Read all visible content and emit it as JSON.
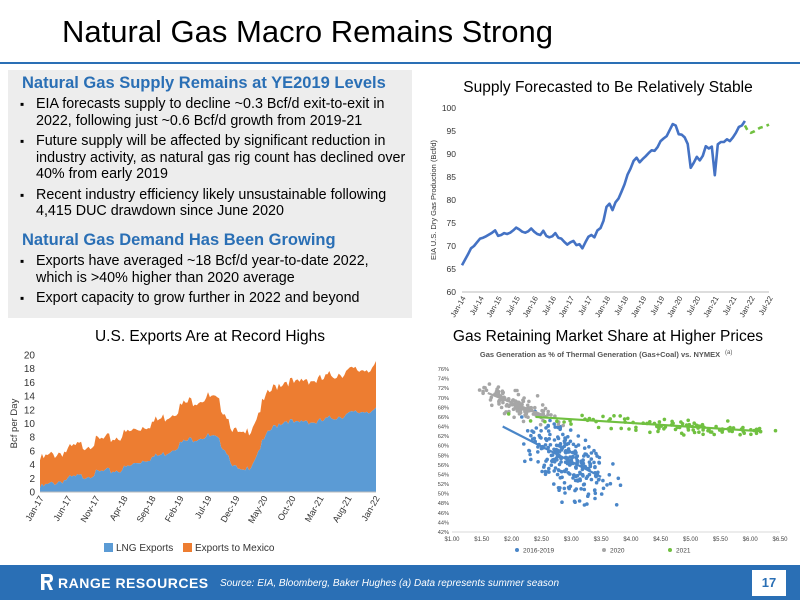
{
  "slide": {
    "title": "Natural Gas Macro Remains Strong",
    "page_number": "17",
    "footer_source": "Source: EIA, Bloomberg, Baker Hughes (a) Data represents summer season",
    "logo_text": "RANGE RESOURCES"
  },
  "text_panel": {
    "supply_heading": "Natural Gas Supply Remains at YE2019 Levels",
    "supply_bullets": [
      "EIA forecasts supply to decline ~0.3 Bcf/d exit-to-exit in 2022, following just ~0.6 Bcf/d growth from 2019-21",
      "Future supply will be affected by significant reduction in industry activity, as natural gas rig count has declined over 40% from early 2019",
      "Recent industry efficiency likely unsustainable following 4,415 DUC drawdown since June 2020"
    ],
    "demand_heading": "Natural Gas Demand Has Been Growing",
    "demand_bullets": [
      "Exports have averaged ~18 Bcf/d year-to-date 2022, which is >40% higher than 2020 average",
      "Export capacity to grow further in 2022 and beyond"
    ]
  },
  "chart_titles": {
    "supply": "Supply Forecasted to Be Relatively Stable",
    "exports": "U.S. Exports Are at Record Highs",
    "share": "Gas Retaining Market Share at Higher Prices"
  },
  "colors": {
    "accent": "#2a6fb5",
    "supply_line": "#4472c4",
    "forecast_line": "#70c040",
    "lng": "#5b9bd5",
    "mexico": "#ed7d31",
    "s2016": "#4a86c8",
    "s2020": "#a6a6a6",
    "s2021": "#70c040"
  },
  "chart_data": [
    {
      "type": "line",
      "ylabel": "EIA U.S. Dry Gas Production (Bcf/d)",
      "ylim": [
        60,
        100
      ],
      "yticks": [
        "60",
        "65",
        "70",
        "75",
        "80",
        "85",
        "90",
        "95",
        "100"
      ],
      "xticks": [
        "Jan-14",
        "Jul-14",
        "Jan-15",
        "Jul-15",
        "Jan-16",
        "Jul-16",
        "Jan-17",
        "Jul-17",
        "Jan-18",
        "Jul-18",
        "Jan-19",
        "Jul-19",
        "Jan-20",
        "Jul-20",
        "Jan-21",
        "Jul-21",
        "Jan-22",
        "Jul-22"
      ],
      "series": [
        {
          "values": [
            65.8,
            67.0,
            68.2,
            69.5,
            70.0,
            70.8,
            71.6,
            71.8,
            72.1,
            72.5,
            72.9,
            73.4,
            72.2,
            72.4,
            72.8,
            72.6,
            72.9,
            73.4,
            74.0,
            73.6,
            73.1,
            72.9,
            73.2,
            73.8,
            73.1,
            72.6,
            72.4,
            73.3,
            72.2,
            71.9,
            72.1,
            72.8,
            71.8,
            71.6,
            70.9,
            70.3,
            70.8,
            71.1,
            70.2,
            70.4,
            69.5,
            70.8,
            72.0,
            72.4,
            71.9,
            73.4,
            73.9,
            75.5,
            78.5,
            79.2,
            77.8,
            79.5,
            80.3,
            81.8,
            83.4,
            85.5,
            86.8,
            88.5,
            89.2,
            88.2,
            88.9,
            89.5,
            90.2,
            90.8,
            90.7,
            91.5,
            92.8,
            93.4,
            93.9,
            95.2,
            96.5,
            96.2,
            94.3,
            94.2,
            93.6,
            92.2,
            87.0,
            88.1,
            89.4,
            88.6,
            89.6,
            91.7,
            91.2,
            91.6,
            85.4,
            92.1,
            92.6,
            92.6,
            93.2,
            92.8,
            93.6,
            94.6,
            95.9,
            96.2,
            97.2
          ]
        },
        {
          "values": [
            96.2,
            95.0,
            94.6,
            94.9,
            95.3,
            95.7,
            95.9,
            96.1,
            96.4
          ]
        }
      ]
    },
    {
      "type": "area",
      "ylabel": "Bcf per Day",
      "ylim": [
        0,
        20
      ],
      "yticks": [
        "0",
        "2",
        "4",
        "6",
        "8",
        "10",
        "12",
        "14",
        "16",
        "18",
        "20"
      ],
      "xticks": [
        "Jan-17",
        "Jun-17",
        "Nov-17",
        "Apr-18",
        "Sep-18",
        "Feb-19",
        "Jul-19",
        "Dec-19",
        "May-20",
        "Oct-20",
        "Mar-21",
        "Aug-21",
        "Jan-22"
      ],
      "series": [
        {
          "name": "LNG Exports",
          "values": [
            0.9,
            1.3,
            1.8,
            2.1,
            2.4,
            2.6,
            2.9,
            3.2,
            3.3,
            3.5,
            3.9,
            4.6,
            5.1,
            5.4,
            5.8,
            6.6,
            7.4,
            7.9,
            8.3,
            8.4,
            8.0,
            6.5,
            3.8,
            3.0,
            4.5,
            7.1,
            9.2,
            10.3,
            10.8,
            10.1,
            10.8,
            10.4,
            10.6,
            11.1,
            11.4,
            11.6,
            11.9,
            12.2,
            12.1
          ]
        },
        {
          "name": "Exports to Mexico",
          "values": [
            4.2,
            4.3,
            4.4,
            4.3,
            4.6,
            4.7,
            4.8,
            4.8,
            4.9,
            5.1,
            5.2,
            5.1,
            5.2,
            5.3,
            5.5,
            5.5,
            5.6,
            5.8,
            5.7,
            5.9,
            5.7,
            5.6,
            5.4,
            5.4,
            5.7,
            5.8,
            5.8,
            6.0,
            6.0,
            5.9,
            6.3,
            6.3,
            6.2,
            6.4,
            6.5,
            6.4,
            6.3,
            6.4,
            6.6
          ]
        }
      ]
    },
    {
      "type": "scatter",
      "title": "Gas Generation as % of Thermal Generation (Gas+Coal) vs. NYMEX",
      "title_superscript": "(a)",
      "ylim": [
        42,
        76
      ],
      "yticks": [
        "42%",
        "44%",
        "46%",
        "48%",
        "50%",
        "52%",
        "54%",
        "56%",
        "58%",
        "60%",
        "62%",
        "64%",
        "66%",
        "68%",
        "70%",
        "72%",
        "74%",
        "76%"
      ],
      "xlim": [
        1.0,
        6.5
      ],
      "xticks": [
        "$1.00",
        "$1.50",
        "$2.00",
        "$2.50",
        "$3.00",
        "$3.50",
        "$4.00",
        "$4.50",
        "$5.00",
        "$5.50",
        "$6.00",
        "$6.50"
      ],
      "legend_position": "bottom",
      "series": [
        {
          "name": "2016-2019",
          "center": [
            2.95,
            56.5
          ],
          "spread": [
            0.3,
            5.5
          ],
          "trend": [
            [
              1.85,
              64.0
            ],
            [
              3.5,
              53.5
            ]
          ]
        },
        {
          "name": "2020",
          "center": [
            2.1,
            68.5
          ],
          "spread": [
            0.3,
            2.3
          ],
          "trend": [
            [
              1.6,
              71.0
            ],
            [
              2.6,
              66.0
            ]
          ]
        },
        {
          "name": "2021",
          "center": [
            4.7,
            64.2
          ],
          "spread": [
            1.0,
            1.5
          ],
          "trend": [
            [
              2.4,
              66.0
            ],
            [
              6.2,
              63.0
            ]
          ]
        }
      ]
    }
  ]
}
